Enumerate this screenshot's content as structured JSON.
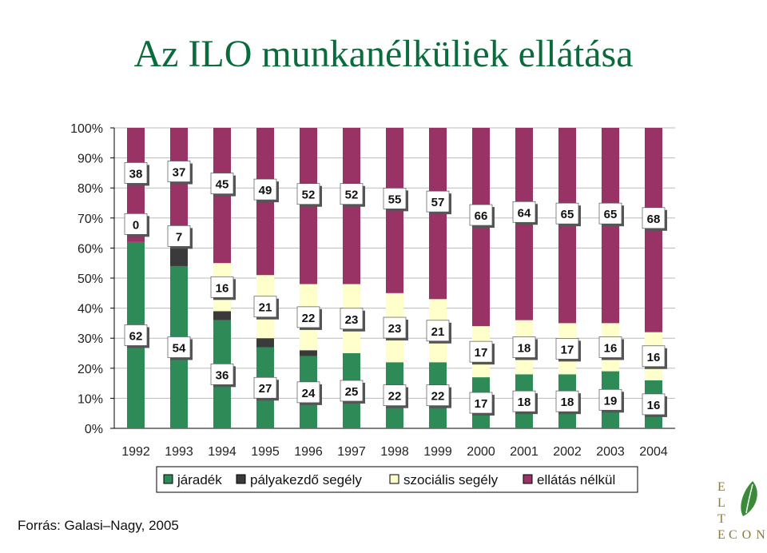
{
  "title": "Az ILO munkanélküliek ellátása",
  "source": "Forrás: Galasi–Nagy, 2005",
  "logo": {
    "letters": [
      "E",
      "L",
      "T",
      "E",
      "C",
      "O",
      "N"
    ]
  },
  "colors": {
    "title": "#0a6b3c",
    "jaradek": "#2e8b57",
    "palyakezdo": "#3a3a3a",
    "szocialis": "#ffffcc",
    "nelkul": "#993366",
    "logo_leaf": "#3a8a3a",
    "logo_text": "#8a7a40"
  },
  "chart_data": {
    "type": "bar",
    "stacked": "percent",
    "title": "Az ILO munkanélküliek ellátása",
    "categories": [
      "1992",
      "1993",
      "1994",
      "1995",
      "1996",
      "1997",
      "1998",
      "1999",
      "2000",
      "2001",
      "2002",
      "2003",
      "2004"
    ],
    "series": [
      {
        "name": "járadék",
        "values": [
          62,
          54,
          36,
          27,
          24,
          25,
          22,
          22,
          17,
          18,
          18,
          19,
          16
        ],
        "labels": [
          "62",
          "54",
          "36",
          "27",
          "24",
          "25",
          "22",
          "22",
          "17",
          "18",
          "18",
          "19",
          "16"
        ],
        "color": "#2e8b57"
      },
      {
        "name": "pályakezdő segély",
        "values": [
          0,
          7,
          3,
          3,
          2,
          0,
          0,
          0,
          0,
          0,
          0,
          0,
          0
        ],
        "labels": [
          "0",
          "7",
          "",
          "",
          "",
          "",
          "",
          "",
          "",
          "",
          "",
          "",
          ""
        ],
        "color": "#3a3a3a"
      },
      {
        "name": "szociális segély",
        "values": [
          0,
          2,
          16,
          21,
          22,
          23,
          23,
          21,
          17,
          18,
          17,
          16,
          16
        ],
        "labels": [
          "",
          "",
          "16",
          "21",
          "22",
          "23",
          "23",
          "21",
          "17",
          "18",
          "17",
          "16",
          "16"
        ],
        "color": "#ffffcc"
      },
      {
        "name": "ellátás nélkül",
        "values": [
          38,
          37,
          45,
          49,
          52,
          52,
          55,
          57,
          66,
          64,
          65,
          65,
          68
        ],
        "labels": [
          "38",
          "37",
          "45",
          "49",
          "52",
          "52",
          "55",
          "57",
          "66",
          "64",
          "65",
          "65",
          "68"
        ],
        "color": "#993366"
      }
    ],
    "y_ticks": [
      "0%",
      "10%",
      "20%",
      "30%",
      "40%",
      "50%",
      "60%",
      "70%",
      "80%",
      "90%",
      "100%"
    ],
    "ylim": [
      0,
      100
    ],
    "grid": true,
    "legend": "bottom"
  }
}
